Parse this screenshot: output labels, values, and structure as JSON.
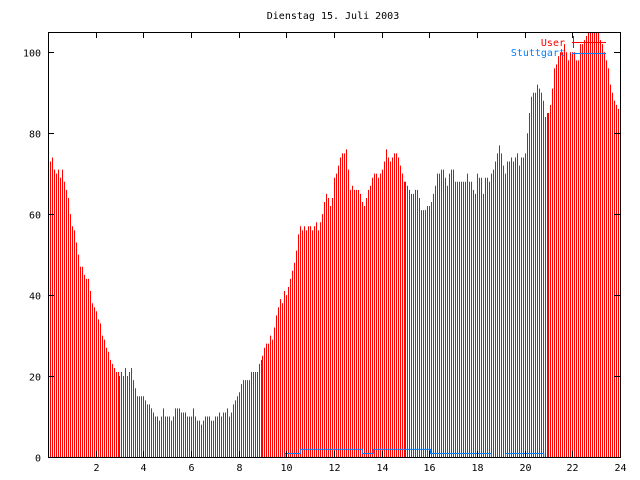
{
  "chart_data": {
    "type": "bar",
    "title": "Dienstag 15. Juli 2003",
    "xlabel": "",
    "ylabel": "",
    "xlim": [
      0,
      24
    ],
    "ylim": [
      0,
      105
    ],
    "x_step_hours": 0.0833333,
    "xticks": [
      "2",
      "4",
      "6",
      "8",
      "10",
      "12",
      "14",
      "16",
      "18",
      "20",
      "22",
      "24"
    ],
    "yticks": [
      "0",
      "20",
      "40",
      "60",
      "80",
      "100"
    ],
    "grid": false,
    "legend_position": "top-right",
    "series": [
      {
        "name": "User",
        "style": "impulses",
        "color": "#ff0000",
        "values": [
          75,
          73,
          74,
          71,
          70,
          71,
          69,
          71,
          68,
          66,
          64,
          60,
          57,
          56,
          53,
          50,
          47,
          47,
          45,
          44,
          44,
          41,
          38,
          37,
          36,
          34,
          33,
          30,
          29,
          27,
          26,
          24,
          23,
          22,
          21,
          21,
          20,
          21,
          20,
          22,
          20,
          21,
          22,
          19,
          17,
          15,
          15,
          15,
          15,
          14,
          13,
          13,
          12,
          11,
          10,
          10,
          9,
          10,
          12,
          10,
          10,
          10,
          9,
          10,
          12,
          12,
          12,
          11,
          11,
          11,
          10,
          10,
          10,
          12,
          10,
          9,
          9,
          8,
          9,
          10,
          10,
          10,
          9,
          9,
          10,
          10,
          11,
          10,
          11,
          11,
          12,
          10,
          11,
          13,
          14,
          15,
          16,
          18,
          19,
          19,
          19,
          19,
          21,
          21,
          21,
          21,
          23,
          24,
          25,
          27,
          28,
          28,
          30,
          29,
          32,
          35,
          37,
          39,
          38,
          41,
          40,
          42,
          44,
          46,
          48,
          51,
          55,
          57,
          56,
          57,
          56,
          57,
          57,
          56,
          57,
          58,
          56,
          58,
          60,
          63,
          65,
          64,
          62,
          64,
          69,
          70,
          72,
          74,
          75,
          75,
          76,
          71,
          66,
          67,
          66,
          66,
          66,
          65,
          63,
          62,
          64,
          66,
          67,
          69,
          70,
          70,
          69,
          70,
          71,
          73,
          76,
          74,
          73,
          74,
          75,
          75,
          74,
          72,
          70,
          68,
          68,
          67,
          66,
          65,
          65,
          66,
          66,
          64,
          61,
          61,
          61,
          62,
          62,
          63,
          65,
          67,
          70,
          70,
          71,
          71,
          69,
          67,
          70,
          71,
          71,
          68,
          68,
          68,
          68,
          68,
          68,
          70,
          68,
          68,
          66,
          65,
          70,
          69,
          69,
          65,
          69,
          69,
          68,
          70,
          71,
          73,
          75,
          77,
          75,
          72,
          70,
          73,
          73,
          74,
          73,
          74,
          75,
          72,
          74,
          74,
          75,
          80,
          85,
          89,
          90,
          90,
          92,
          91,
          90,
          88,
          84,
          85,
          85,
          87,
          91,
          96,
          97,
          99,
          100,
          100,
          102,
          100,
          98,
          100,
          100,
          100,
          98,
          98,
          102,
          102,
          103,
          104,
          105,
          108,
          108,
          108,
          108,
          106,
          103,
          102,
          100,
          98,
          96,
          92,
          90,
          88,
          87,
          86
        ]
      },
      {
        "name": "Stuttgart",
        "style": "steps",
        "color": "#0080ff",
        "points": [
          [
            0,
            0
          ],
          [
            9.95,
            1
          ],
          [
            10.6,
            2
          ],
          [
            13.2,
            1
          ],
          [
            13.65,
            2
          ],
          [
            16.05,
            1
          ],
          [
            18.6,
            0
          ],
          [
            19.2,
            1
          ],
          [
            20.8,
            0
          ],
          [
            24,
            0
          ]
        ]
      }
    ]
  }
}
